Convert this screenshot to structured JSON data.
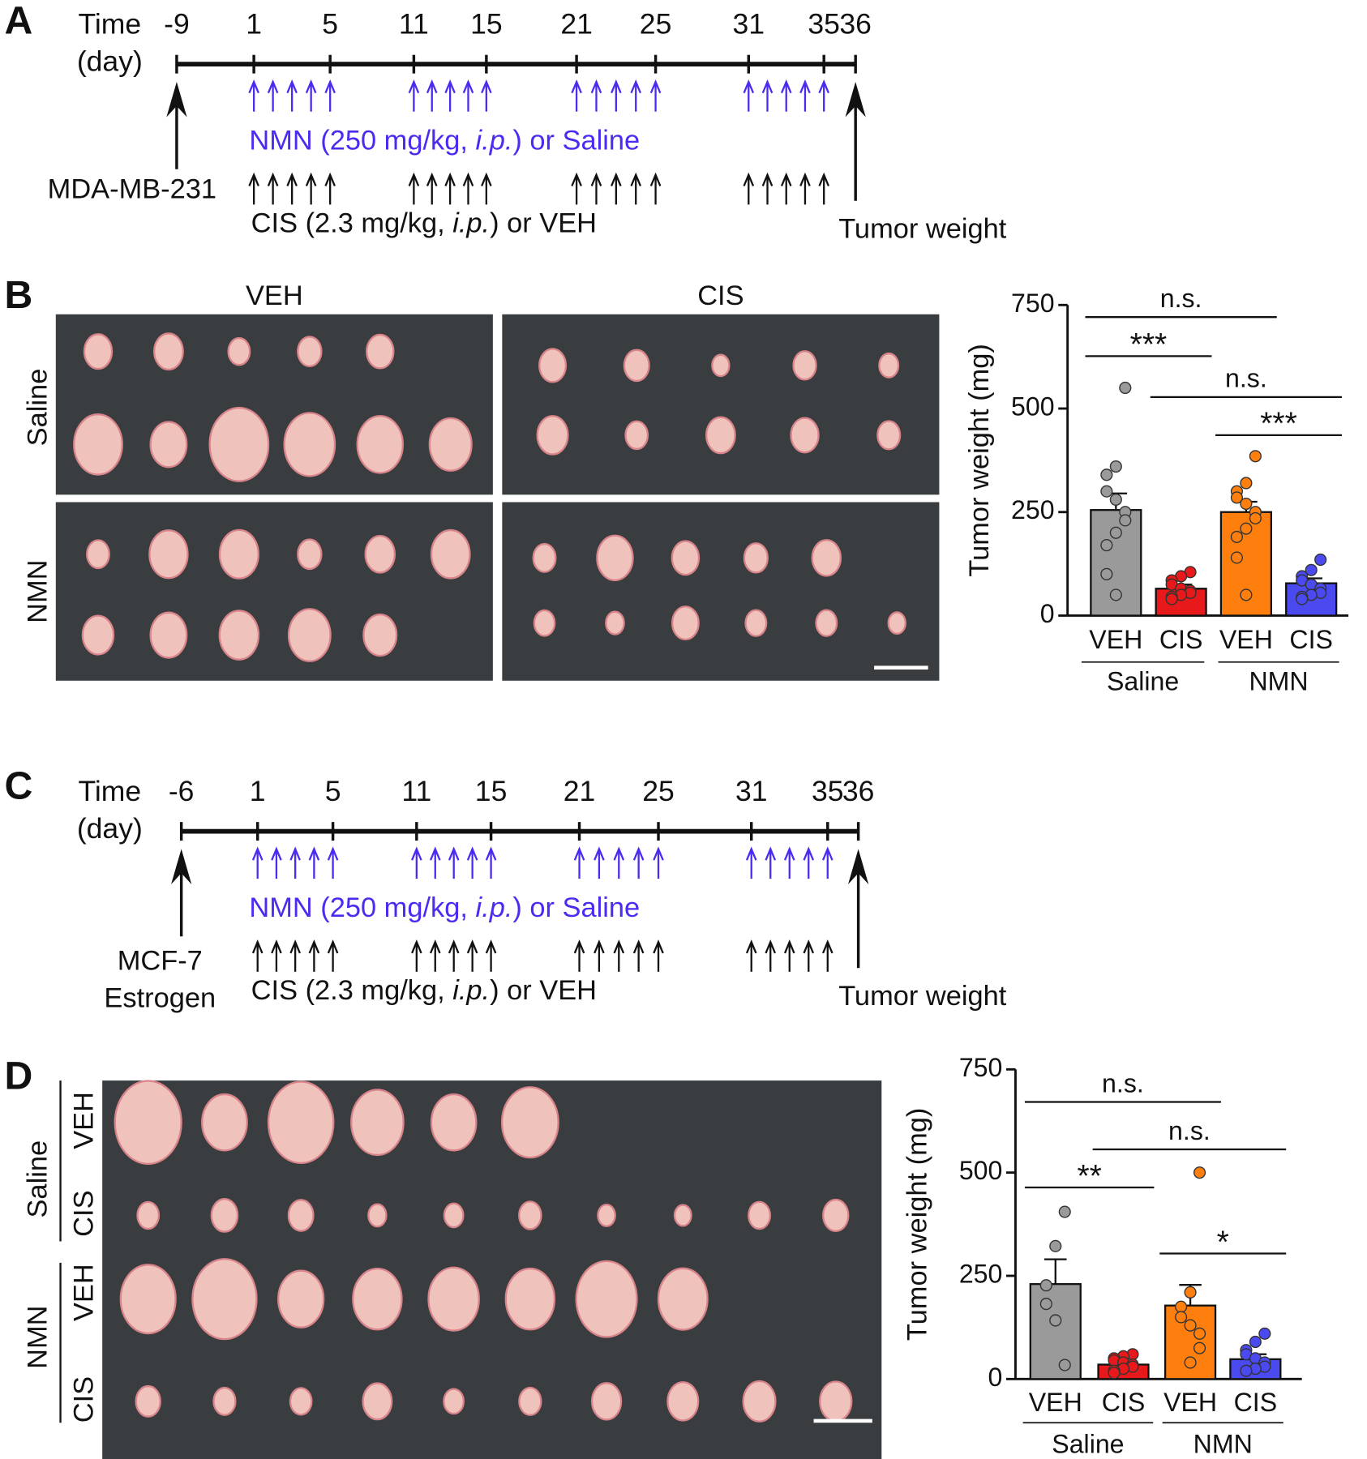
{
  "panel_labels": [
    "A",
    "B",
    "C",
    "D"
  ],
  "timeline_a": {
    "label": "Time",
    "unit": "(day)",
    "ticks": [
      -9,
      1,
      5,
      11,
      15,
      21,
      25,
      31,
      35,
      36
    ],
    "treatment": [
      "NMN (250 mg/kg, ",
      "i.p.",
      ") or Saline"
    ],
    "drug": [
      "CIS (2.3 mg/kg, ",
      "i.p.",
      ") or VEH"
    ],
    "start": [
      "MDA-MB-231"
    ],
    "end": "Tumor weight"
  },
  "timeline_c": {
    "label": "Time",
    "unit": "(day)",
    "ticks": [
      -6,
      1,
      5,
      11,
      15,
      21,
      25,
      31,
      35,
      36
    ],
    "treatment": [
      "NMN (250 mg/kg, ",
      "i.p.",
      ") or Saline"
    ],
    "drug": [
      "CIS (2.3 mg/kg, ",
      "i.p.",
      ") or VEH"
    ],
    "start": [
      "MCF-7",
      "Estrogen"
    ],
    "end": "Tumor weight"
  },
  "photo_b": {
    "columns": [
      "VEH",
      "CIS"
    ],
    "rows": [
      "Saline",
      "NMN"
    ]
  },
  "photo_d": {
    "groups": [
      "Saline",
      "NMN"
    ],
    "rows": [
      "VEH",
      "CIS",
      "VEH",
      "CIS"
    ]
  },
  "chart_data": [
    {
      "type": "bar",
      "ylabel": "Tumor weight (mg)",
      "categories": [
        "VEH",
        "CIS",
        "VEH",
        "CIS"
      ],
      "groups": [
        "Saline",
        "NMN"
      ],
      "colors": [
        "#9a9a9a",
        "#e8191a",
        "#ff7f0e",
        "#4a4af0"
      ],
      "values": [
        255,
        65,
        250,
        78
      ],
      "errors": [
        40,
        10,
        25,
        12
      ],
      "points": [
        [
          550,
          360,
          340,
          300,
          280,
          250,
          230,
          200,
          170,
          100,
          50
        ],
        [
          105,
          95,
          85,
          75,
          65,
          60,
          55,
          50,
          45,
          40
        ],
        [
          385,
          320,
          300,
          285,
          270,
          250,
          235,
          210,
          190,
          140,
          50
        ],
        [
          135,
          110,
          95,
          85,
          75,
          65,
          55,
          50,
          45,
          40
        ]
      ],
      "ylim": [
        0,
        750
      ],
      "yticks": [
        0,
        250,
        500,
        750
      ],
      "comparisons": [
        {
          "label": "n.s.",
          "between": [
            0,
            2
          ]
        },
        {
          "label": "***",
          "between": [
            0,
            1
          ]
        },
        {
          "label": "n.s.",
          "between": [
            1,
            3
          ]
        },
        {
          "label": "***",
          "between": [
            2,
            3
          ]
        }
      ]
    },
    {
      "type": "bar",
      "ylabel": "Tumor weight (mg)",
      "categories": [
        "VEH",
        "CIS",
        "VEH",
        "CIS"
      ],
      "groups": [
        "Saline",
        "NMN"
      ],
      "colors": [
        "#9a9a9a",
        "#e8191a",
        "#ff7f0e",
        "#4a4af0"
      ],
      "values": [
        230,
        35,
        178,
        48
      ],
      "errors": [
        60,
        8,
        50,
        12
      ],
      "points": [
        [
          405,
          322,
          227,
          182,
          142,
          34
        ],
        [
          60,
          55,
          50,
          45,
          40,
          35,
          30,
          25,
          20,
          15
        ],
        [
          500,
          210,
          175,
          150,
          130,
          110,
          75,
          40
        ],
        [
          110,
          90,
          70,
          60,
          50,
          40,
          30,
          25,
          20
        ]
      ],
      "ylim": [
        0,
        750
      ],
      "yticks": [
        0,
        250,
        500,
        750
      ],
      "comparisons": [
        {
          "label": "n.s.",
          "between": [
            0,
            2
          ]
        },
        {
          "label": "n.s.",
          "between": [
            1,
            3
          ]
        },
        {
          "label": "**",
          "between": [
            0,
            1
          ]
        },
        {
          "label": "*",
          "between": [
            2,
            3
          ]
        }
      ]
    }
  ]
}
